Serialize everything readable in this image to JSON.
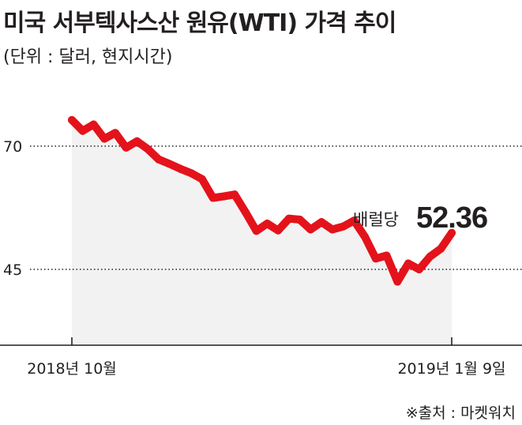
{
  "title": "미국 서부텍사스산 원유(WTI) 가격 추이",
  "subtitle": "(단위 : 달러, 현지시간)",
  "source": "※출처 : 마켓워치",
  "colors": {
    "line": "#e4121b",
    "area": "#f2f2f2",
    "grid": "#231f20",
    "axis": "#231f20"
  },
  "chart_data": {
    "type": "line",
    "series": [
      {
        "values": [
          75.3,
          73.1,
          74.4,
          71.5,
          72.7,
          69.7,
          71.0,
          69.4,
          67.3,
          66.4,
          65.4,
          64.5,
          63.3,
          59.5,
          59.8,
          60.2,
          56.6,
          52.8,
          54.3,
          52.9,
          55.3,
          55.1,
          53.1,
          54.6,
          53.1,
          53.7,
          54.9,
          51.6,
          47.2,
          47.8,
          42.5,
          46.2,
          45.0,
          47.6,
          49.2,
          52.4
        ]
      }
    ],
    "x_start_label": "2018년 10월",
    "x_end_label": "2019년 1월 9일",
    "yticks": [
      70,
      45
    ],
    "ylim": [
      38,
      86
    ],
    "grid": "dotted lines at y ticks",
    "annotation": {
      "label": "배럴당",
      "value": "52.36"
    }
  }
}
